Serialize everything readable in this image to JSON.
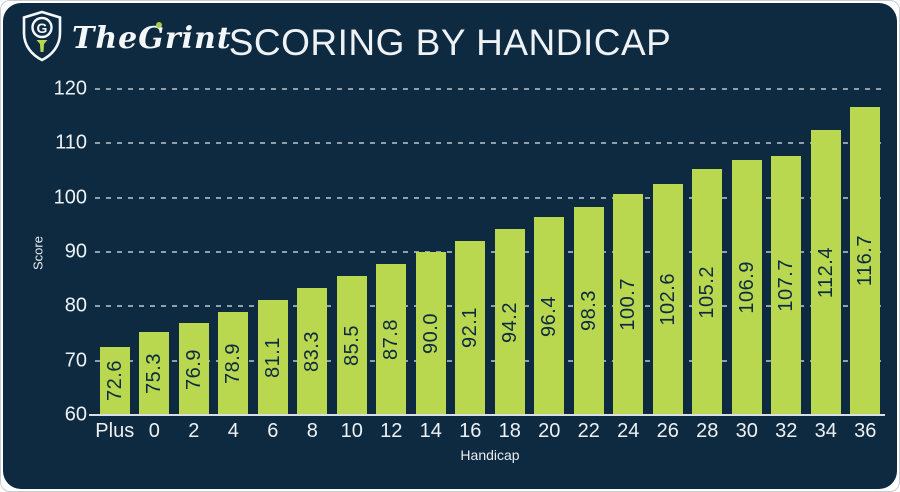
{
  "header": {
    "logo_text": "TheGrint",
    "title": "SCORING BY HANDICAP"
  },
  "chart_data": {
    "type": "bar",
    "title": "SCORING BY HANDICAP",
    "xlabel": "Handicap",
    "ylabel": "Score",
    "ylim": [
      60,
      120
    ],
    "yticks": [
      60,
      70,
      80,
      90,
      100,
      110,
      120
    ],
    "grid": "horizontal-dashed",
    "legend": "none",
    "bar_color": "#b9d84f",
    "bar_label_color": "#0e2a40",
    "background_color": "#0e2a40",
    "categories": [
      "Plus",
      "0",
      "2",
      "4",
      "6",
      "8",
      "10",
      "12",
      "14",
      "16",
      "18",
      "20",
      "22",
      "24",
      "26",
      "28",
      "30",
      "32",
      "34",
      "36"
    ],
    "values": [
      72.6,
      75.3,
      76.9,
      78.9,
      81.1,
      83.3,
      85.5,
      87.8,
      90.0,
      92.1,
      94.2,
      96.4,
      98.3,
      100.7,
      102.6,
      105.2,
      106.9,
      107.7,
      112.4,
      116.7
    ],
    "value_labels": [
      "72.6",
      "75.3",
      "76.9",
      "78.9",
      "81.1",
      "83.3",
      "85.5",
      "87.8",
      "90.0",
      "92.1",
      "94.2",
      "96.4",
      "98.3",
      "100.7",
      "102.6",
      "105.2",
      "106.9",
      "107.7",
      "112.4",
      "116.7"
    ]
  }
}
